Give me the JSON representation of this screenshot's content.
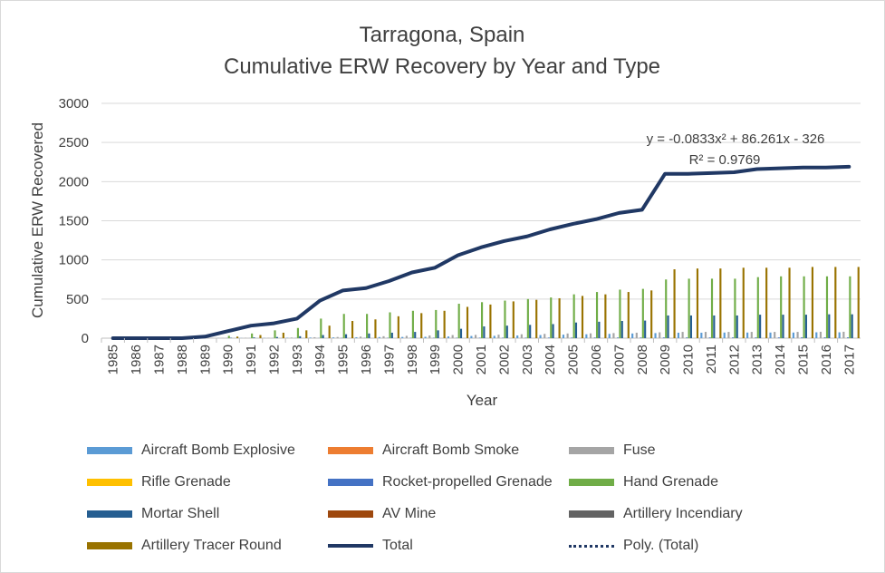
{
  "chart_data": {
    "type": "bar",
    "title": [
      "Tarragona, Spain",
      "Cumulative ERW Recovery by Year and Type"
    ],
    "xlabel": "Year",
    "ylabel": "Cumulative ERW Recovered",
    "ylim": [
      0,
      3000
    ],
    "yticks": [
      0,
      500,
      1000,
      1500,
      2000,
      2500,
      3000
    ],
    "grid": true,
    "legend_position": "bottom",
    "categories": [
      "1985",
      "1986",
      "1987",
      "1988",
      "1989",
      "1990",
      "1991",
      "1992",
      "1993",
      "1994",
      "1995",
      "1996",
      "1997",
      "1998",
      "1999",
      "2000",
      "2001",
      "2002",
      "2003",
      "2004",
      "2005",
      "2006",
      "2007",
      "2008",
      "2009",
      "2010",
      "2011",
      "2012",
      "2013",
      "2014",
      "2015",
      "2016",
      "2017"
    ],
    "series": [
      {
        "name": "Aircraft Bomb Explosive",
        "kind": "bar",
        "color": "#5b9bd5",
        "values": [
          0,
          0,
          0,
          0,
          0,
          2,
          2,
          3,
          5,
          8,
          10,
          12,
          14,
          16,
          18,
          22,
          28,
          30,
          35,
          40,
          45,
          50,
          55,
          60,
          65,
          70,
          70,
          72,
          72,
          72,
          72,
          75,
          75
        ]
      },
      {
        "name": "Aircraft Bomb Smoke",
        "kind": "bar",
        "color": "#ed7d31",
        "values": [
          0,
          0,
          0,
          0,
          0,
          0,
          0,
          0,
          0,
          0,
          0,
          0,
          0,
          0,
          0,
          0,
          0,
          0,
          0,
          0,
          0,
          0,
          0,
          0,
          0,
          0,
          0,
          0,
          0,
          0,
          0,
          0,
          0
        ]
      },
      {
        "name": "Fuse",
        "kind": "bar",
        "color": "#a5a5a5",
        "values": [
          0,
          0,
          0,
          0,
          1,
          3,
          5,
          5,
          8,
          12,
          15,
          20,
          25,
          30,
          35,
          40,
          42,
          45,
          50,
          55,
          60,
          62,
          65,
          70,
          75,
          80,
          80,
          80,
          80,
          80,
          80,
          82,
          82
        ]
      },
      {
        "name": "Rifle Grenade",
        "kind": "bar",
        "color": "#ffc000",
        "values": [
          0,
          0,
          0,
          0,
          0,
          0,
          0,
          0,
          0,
          0,
          0,
          0,
          0,
          0,
          0,
          0,
          0,
          0,
          0,
          0,
          0,
          0,
          0,
          0,
          0,
          0,
          0,
          0,
          0,
          0,
          0,
          0,
          0
        ]
      },
      {
        "name": "Rocket-propelled Grenade",
        "kind": "bar",
        "color": "#4472c4",
        "values": [
          0,
          0,
          0,
          0,
          0,
          1,
          1,
          1,
          2,
          2,
          3,
          3,
          4,
          4,
          5,
          5,
          6,
          6,
          6,
          7,
          7,
          8,
          8,
          8,
          9,
          9,
          9,
          9,
          9,
          9,
          10,
          10,
          10
        ]
      },
      {
        "name": "Hand Grenade",
        "kind": "bar",
        "color": "#70ad47",
        "values": [
          0,
          0,
          0,
          0,
          0,
          30,
          60,
          100,
          130,
          250,
          310,
          310,
          330,
          350,
          360,
          440,
          460,
          480,
          500,
          520,
          560,
          590,
          620,
          630,
          750,
          760,
          760,
          760,
          780,
          790,
          790,
          790,
          790
        ]
      },
      {
        "name": "Mortar Shell",
        "kind": "bar",
        "color": "#255e91",
        "values": [
          0,
          0,
          0,
          0,
          0,
          5,
          10,
          15,
          25,
          40,
          50,
          60,
          70,
          80,
          100,
          120,
          150,
          160,
          170,
          180,
          200,
          210,
          220,
          225,
          290,
          290,
          290,
          290,
          300,
          300,
          300,
          305,
          305
        ]
      },
      {
        "name": "AV Mine",
        "kind": "bar",
        "color": "#9e480e",
        "values": [
          0,
          0,
          0,
          0,
          0,
          0,
          0,
          0,
          0,
          0,
          0,
          0,
          0,
          0,
          0,
          0,
          0,
          0,
          0,
          0,
          0,
          0,
          0,
          0,
          0,
          0,
          0,
          0,
          0,
          0,
          0,
          0,
          0
        ]
      },
      {
        "name": "Artillery Incendiary",
        "kind": "bar",
        "color": "#636363",
        "values": [
          0,
          0,
          0,
          0,
          0,
          0,
          0,
          0,
          0,
          0,
          0,
          0,
          0,
          0,
          0,
          0,
          0,
          0,
          0,
          0,
          0,
          0,
          0,
          0,
          0,
          0,
          0,
          0,
          0,
          0,
          0,
          0,
          0
        ]
      },
      {
        "name": "Artillery Tracer Round",
        "kind": "bar",
        "color": "#997300",
        "values": [
          0,
          0,
          0,
          0,
          0,
          20,
          40,
          70,
          100,
          160,
          220,
          240,
          280,
          320,
          350,
          400,
          430,
          470,
          490,
          510,
          540,
          560,
          590,
          610,
          880,
          890,
          890,
          900,
          900,
          900,
          910,
          910,
          910
        ]
      },
      {
        "name": "Total",
        "kind": "line",
        "color": "#203864",
        "values": [
          0,
          0,
          0,
          0,
          20,
          90,
          160,
          190,
          250,
          480,
          610,
          640,
          730,
          840,
          900,
          1060,
          1160,
          1240,
          1300,
          1390,
          1460,
          1520,
          1600,
          1640,
          2100,
          2100,
          2110,
          2120,
          2160,
          2170,
          2180,
          2180,
          2190
        ]
      },
      {
        "name": "Poly. (Total)",
        "kind": "trendline",
        "color": "#203864",
        "equation": "y = -0.0833x² + 86.261x - 326",
        "r_squared": "R² = 0.9769"
      }
    ]
  },
  "legend": [
    {
      "label": "Aircraft Bomb Explosive",
      "color": "#5b9bd5",
      "kind": "bar"
    },
    {
      "label": "Aircraft Bomb Smoke",
      "color": "#ed7d31",
      "kind": "bar"
    },
    {
      "label": "Fuse",
      "color": "#a5a5a5",
      "kind": "bar"
    },
    {
      "label": "Rifle Grenade",
      "color": "#ffc000",
      "kind": "bar"
    },
    {
      "label": "Rocket-propelled Grenade",
      "color": "#4472c4",
      "kind": "bar"
    },
    {
      "label": "Hand Grenade",
      "color": "#70ad47",
      "kind": "bar"
    },
    {
      "label": "Mortar Shell",
      "color": "#255e91",
      "kind": "bar"
    },
    {
      "label": "AV Mine",
      "color": "#9e480e",
      "kind": "bar"
    },
    {
      "label": "Artillery Incendiary",
      "color": "#636363",
      "kind": "bar"
    },
    {
      "label": "Artillery Tracer Round",
      "color": "#997300",
      "kind": "bar"
    },
    {
      "label": "Total",
      "color": "#203864",
      "kind": "line"
    },
    {
      "label": "Poly. (Total)",
      "color": "#203864",
      "kind": "dotted"
    }
  ]
}
